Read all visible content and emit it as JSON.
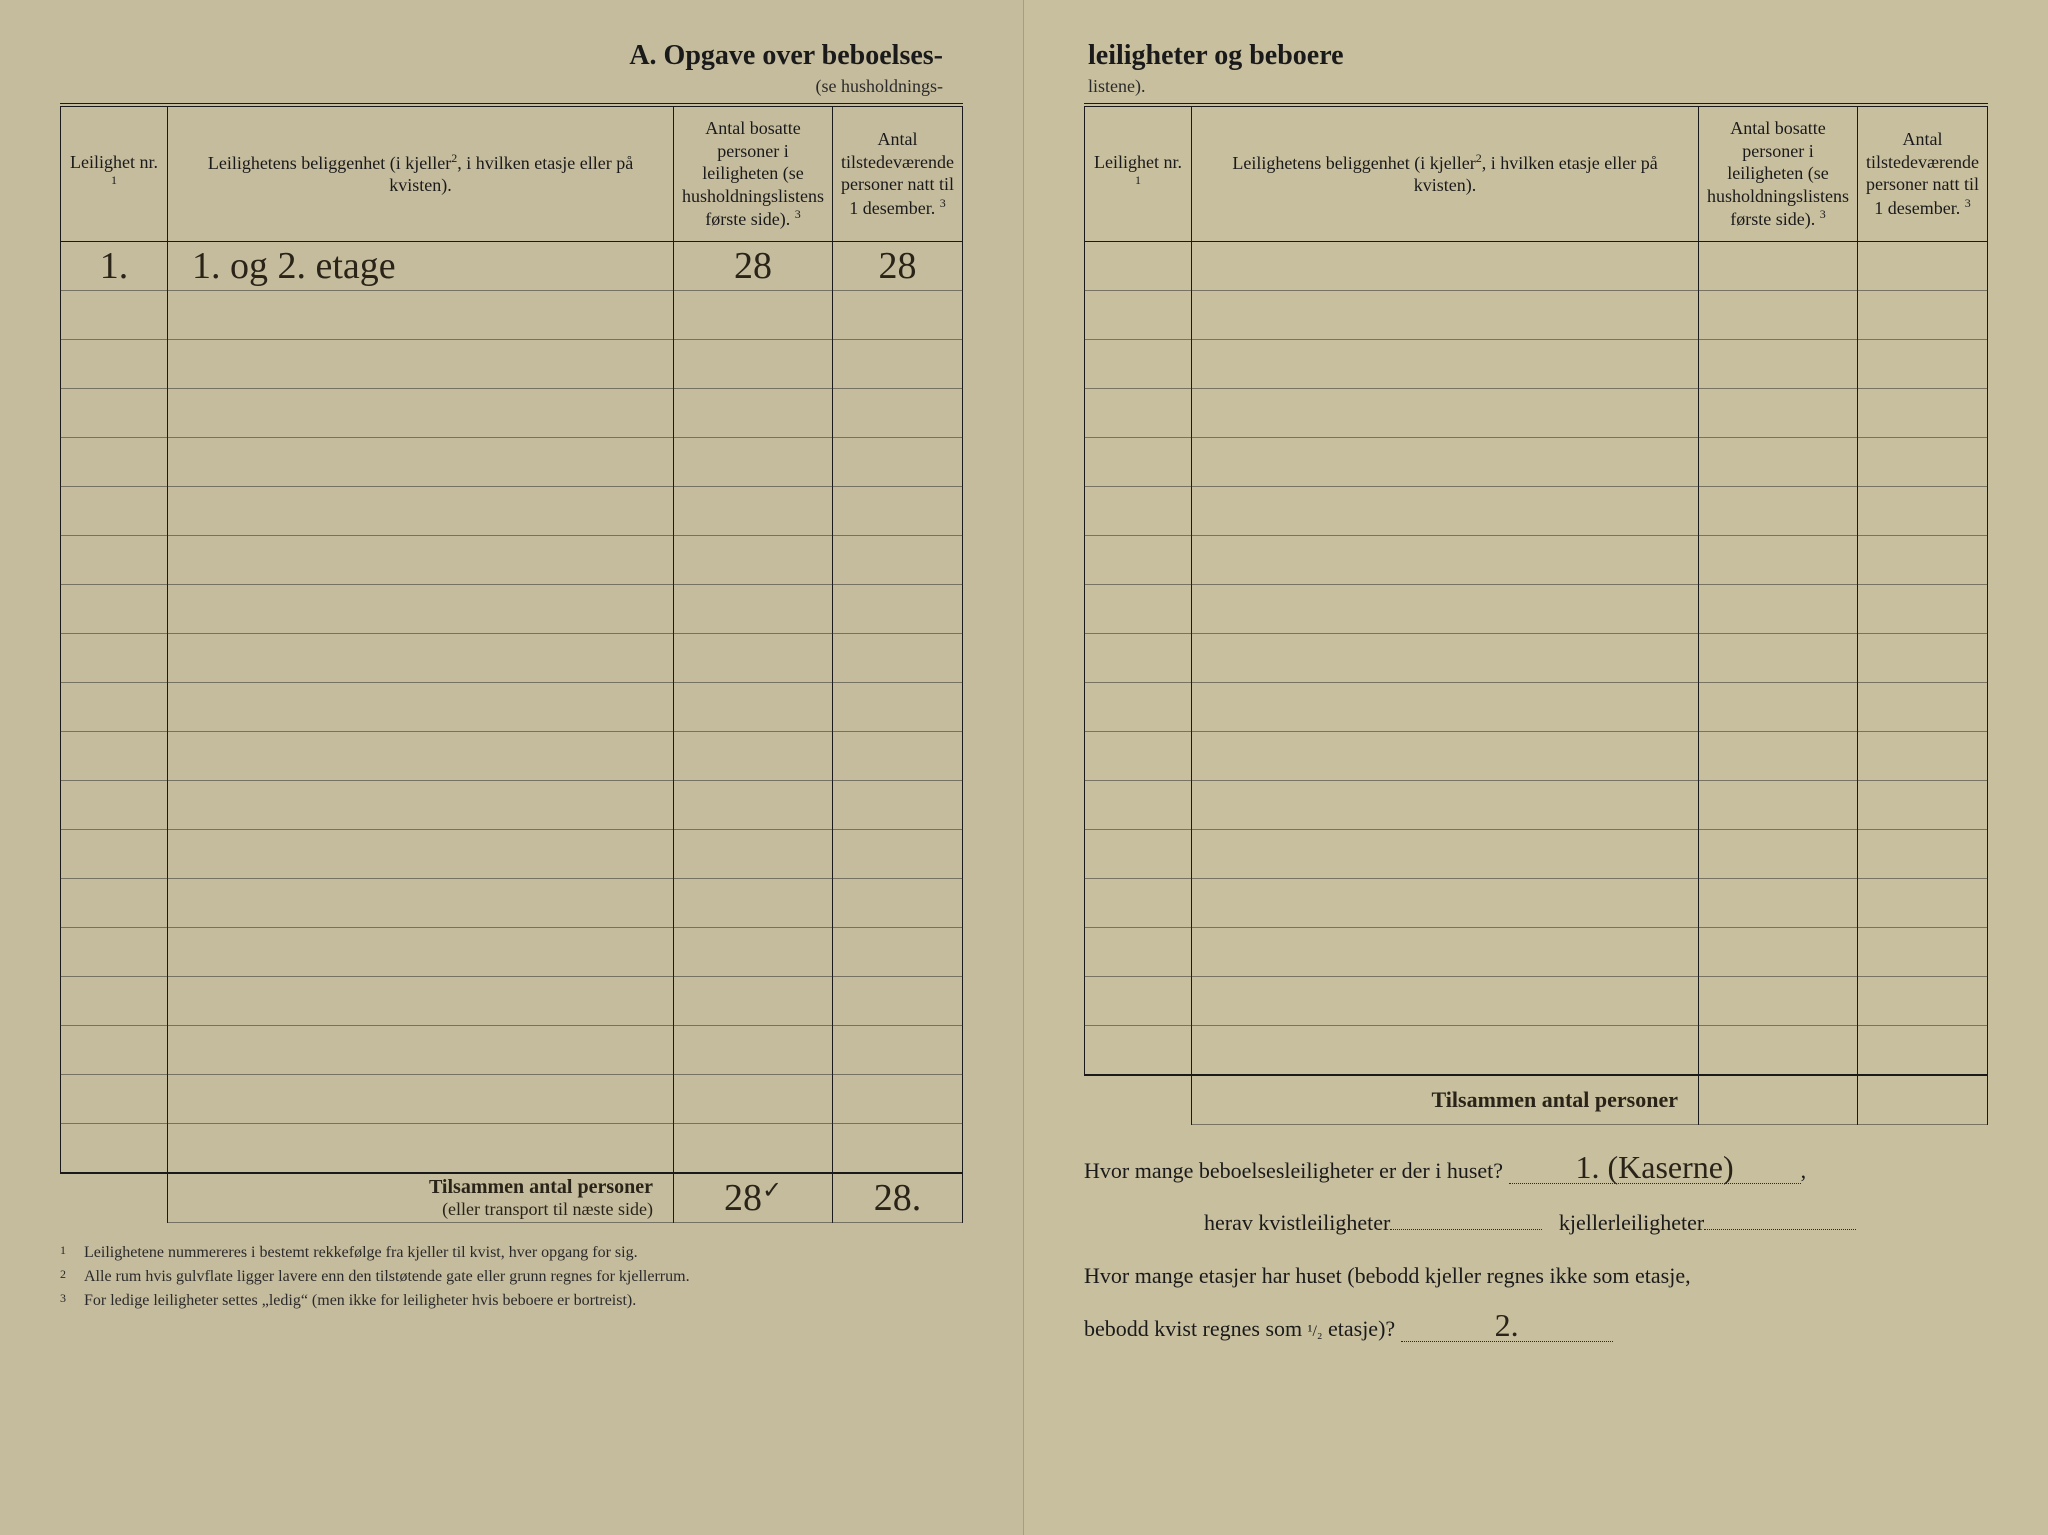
{
  "title": {
    "left": "A.  Opgave over beboelses-",
    "right": "leiligheter og beboere",
    "sub_left": "(se husholdnings-",
    "sub_right": "listene)."
  },
  "headers": {
    "nr": "Leilighet nr.",
    "nr_sup": "1",
    "loc": "Leilighetens beliggenhet (i kjeller",
    "loc_sup": "2",
    "loc2": ", i hvilken etasje eller på kvisten).",
    "col3": "Antal bosatte personer i leiligheten (se husholdningslistens første side).",
    "col3_sup": "3",
    "col4": "Antal tilstedeværende personer natt til 1 desember.",
    "col4_sup": "3"
  },
  "rows_left": [
    {
      "nr": "1.",
      "loc": "1. og 2. etage",
      "c3": "28",
      "c4": "28"
    },
    {
      "nr": "",
      "loc": "",
      "c3": "",
      "c4": ""
    },
    {
      "nr": "",
      "loc": "",
      "c3": "",
      "c4": ""
    },
    {
      "nr": "",
      "loc": "",
      "c3": "",
      "c4": ""
    },
    {
      "nr": "",
      "loc": "",
      "c3": "",
      "c4": ""
    },
    {
      "nr": "",
      "loc": "",
      "c3": "",
      "c4": ""
    },
    {
      "nr": "",
      "loc": "",
      "c3": "",
      "c4": ""
    },
    {
      "nr": "",
      "loc": "",
      "c3": "",
      "c4": ""
    },
    {
      "nr": "",
      "loc": "",
      "c3": "",
      "c4": ""
    },
    {
      "nr": "",
      "loc": "",
      "c3": "",
      "c4": ""
    },
    {
      "nr": "",
      "loc": "",
      "c3": "",
      "c4": ""
    },
    {
      "nr": "",
      "loc": "",
      "c3": "",
      "c4": ""
    },
    {
      "nr": "",
      "loc": "",
      "c3": "",
      "c4": ""
    },
    {
      "nr": "",
      "loc": "",
      "c3": "",
      "c4": ""
    },
    {
      "nr": "",
      "loc": "",
      "c3": "",
      "c4": ""
    },
    {
      "nr": "",
      "loc": "",
      "c3": "",
      "c4": ""
    },
    {
      "nr": "",
      "loc": "",
      "c3": "",
      "c4": ""
    },
    {
      "nr": "",
      "loc": "",
      "c3": "",
      "c4": ""
    },
    {
      "nr": "",
      "loc": "",
      "c3": "",
      "c4": ""
    }
  ],
  "totals_left": {
    "label": "Tilsammen antal personer",
    "sub": "(eller transport til næste side)",
    "c3": "28",
    "check": "✓",
    "c4": "28."
  },
  "rows_right_count": 17,
  "totals_right": {
    "label": "Tilsammen antal personer"
  },
  "questions": {
    "q1a": "Hvor mange beboelsesleiligheter er der i huset?",
    "q1_ans": "1.  (Kaserne)",
    "q1b": ",",
    "q2a": "herav kvistleiligheter",
    "q2b": "kjellerleiligheter",
    "q3": "Hvor mange etasjer har huset (bebodd kjeller regnes ikke som etasje,",
    "q3b": "bebodd kvist regnes som ",
    "half": "1/2",
    "q3c": " etasje)?",
    "q3_ans": "2."
  },
  "footnotes": [
    "Leilighetene nummereres i bestemt rekkefølge fra kjeller til kvist, hver opgang for sig.",
    "Alle rum hvis gulvflate ligger lavere enn den tilstøtende gate eller grunn regnes for kjellerrum.",
    "For ledige leiligheter settes „ledig“ (men ikke for leiligheter hvis beboere er bortreist)."
  ],
  "colors": {
    "paper": "#c5bc9e",
    "ink": "#1a1a1a",
    "handwriting": "#2a2418"
  }
}
